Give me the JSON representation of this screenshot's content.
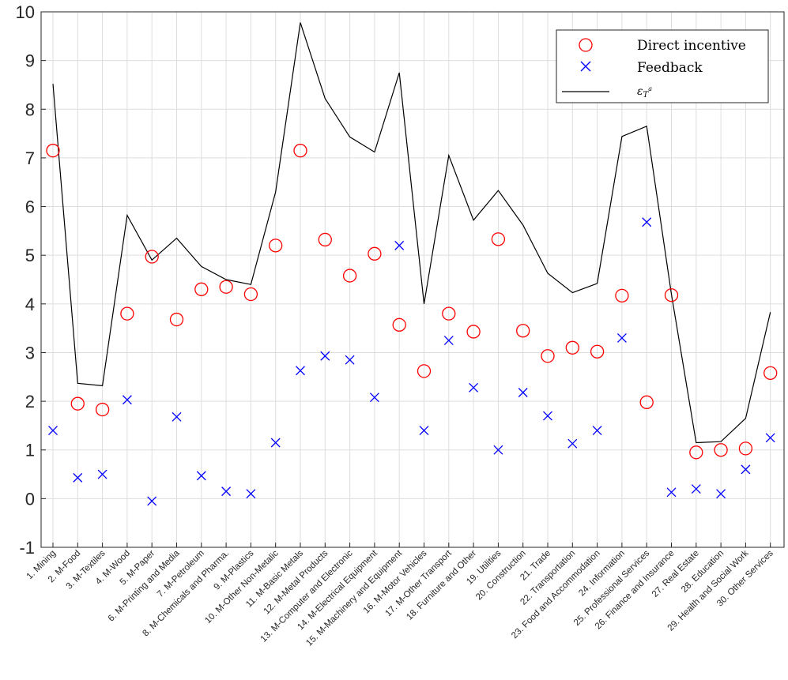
{
  "chart_data": {
    "type": "scatter",
    "title": "",
    "xlabel": "",
    "ylabel": "",
    "ylim": [
      -1,
      10
    ],
    "yticks": [
      -1,
      0,
      1,
      2,
      3,
      4,
      5,
      6,
      7,
      8,
      9,
      10
    ],
    "grid": true,
    "legend_position": "top-right",
    "categories": [
      "1. Mining",
      "2. M-Food",
      "3. M-Textiles",
      "4. M-Wood",
      "5. M-Paper",
      "6. M-Printing and Media",
      "7. M-Petroleum",
      "8. M-Chemicals and Pharma.",
      "9. M-Plastics",
      "10. M-Other Non-Metalic",
      "11. M-Basic Metals",
      "12. M-Metal Products",
      "13. M-Computer and Electronic",
      "14. M-Electrical Equipment",
      "15. M-Machinery and Equipment",
      "16. M-Motor Vehicles",
      "17. M-Other Transport",
      "18. Furniture and Other",
      "19. Utilities",
      "20. Construction",
      "21. Trade",
      "22. Transportation",
      "23. Food and Accommodation",
      "24. Information",
      "25. Professional Services",
      "26. Finance and Insurance",
      "27. Real Estate",
      "28. Education",
      "29. Health and Social Work",
      "30. Other Services"
    ],
    "series": [
      {
        "name": "Direct incentive",
        "marker": "circle",
        "color": "#ff0000",
        "values": [
          7.15,
          1.95,
          1.83,
          3.8,
          4.97,
          3.68,
          4.3,
          4.35,
          4.2,
          5.2,
          7.15,
          5.32,
          4.58,
          5.03,
          3.57,
          2.62,
          3.8,
          3.43,
          5.33,
          3.45,
          2.93,
          3.1,
          3.02,
          4.17,
          1.98,
          4.18,
          0.95,
          1.0,
          1.03,
          2.58
        ]
      },
      {
        "name": "Feedback",
        "marker": "x",
        "color": "#0000ff",
        "values": [
          1.4,
          0.43,
          0.5,
          2.03,
          -0.05,
          1.68,
          0.47,
          0.15,
          0.1,
          1.15,
          2.63,
          2.93,
          2.85,
          2.08,
          5.2,
          1.4,
          3.25,
          2.28,
          1.0,
          2.18,
          1.7,
          1.13,
          1.4,
          3.3,
          5.68,
          0.13,
          0.2,
          0.1,
          0.6,
          1.25
        ]
      },
      {
        "name": "ε_{T^a}",
        "marker": "line",
        "color": "#000000",
        "values": [
          8.52,
          2.37,
          2.32,
          5.82,
          4.9,
          5.35,
          4.77,
          4.5,
          4.4,
          6.3,
          9.78,
          8.22,
          7.43,
          7.12,
          8.75,
          4.0,
          7.05,
          5.72,
          6.33,
          5.62,
          4.63,
          4.23,
          4.42,
          7.44,
          7.65,
          4.2,
          1.15,
          1.17,
          1.65,
          3.83
        ]
      }
    ]
  },
  "legend": {
    "items": [
      {
        "label": "Direct incentive",
        "marker": "circle"
      },
      {
        "label": "Feedback",
        "marker": "x"
      },
      {
        "label": "ε",
        "sub": "T",
        "sup": "a",
        "marker": "line"
      }
    ]
  }
}
